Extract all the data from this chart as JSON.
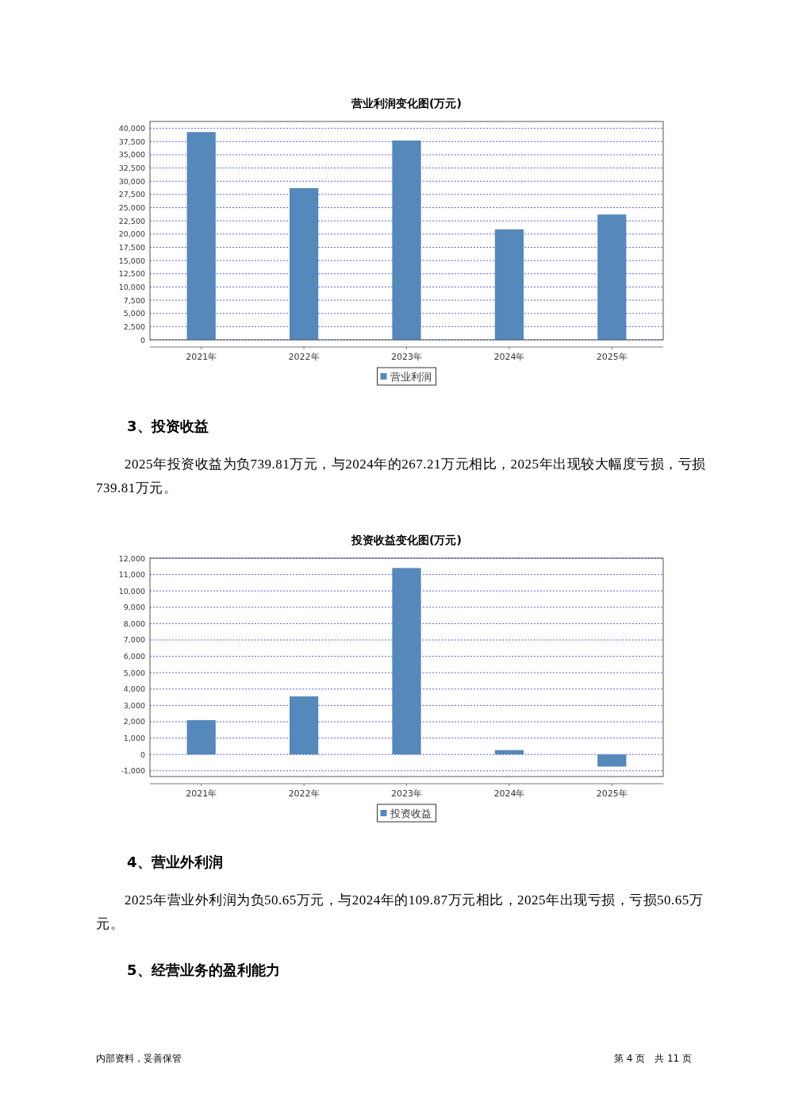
{
  "chart_data": [
    {
      "type": "bar",
      "title": "营业利润变化图(万元)",
      "categories": [
        "2021年",
        "2022年",
        "2023年",
        "2024年",
        "2025年"
      ],
      "series": [
        {
          "name": "营业利润",
          "color": "#5588bb",
          "values": [
            39300,
            28700,
            37700,
            20900,
            23700
          ]
        }
      ],
      "ylim": [
        0,
        41300
      ],
      "yticks": [
        {
          "value": 0,
          "label": "0"
        },
        {
          "value": 2500,
          "label": "2,500"
        },
        {
          "value": 5000,
          "label": "5,000"
        },
        {
          "value": 7500,
          "label": "7,500"
        },
        {
          "value": 10000,
          "label": "10,000"
        },
        {
          "value": 12500,
          "label": "12,500"
        },
        {
          "value": 15000,
          "label": "15,000"
        },
        {
          "value": 17500,
          "label": "17,500"
        },
        {
          "value": 20000,
          "label": "20,000"
        },
        {
          "value": 22500,
          "label": "22,500"
        },
        {
          "value": 25000,
          "label": "25,000"
        },
        {
          "value": 27500,
          "label": "27,500"
        },
        {
          "value": 30000,
          "label": "30,000"
        },
        {
          "value": 32500,
          "label": "32,500"
        },
        {
          "value": 35000,
          "label": "35,000"
        },
        {
          "value": 37500,
          "label": "37,500"
        },
        {
          "value": 40000,
          "label": "40,000"
        }
      ],
      "grid": "y",
      "legend": "bottom",
      "annotations": [
        "3、投资收益",
        "2025年投资收益为负739.81万元，与2024年的267.21万元相比，2025年出现较大幅度亏损，亏损739.81万元。"
      ]
    },
    {
      "type": "bar",
      "title": "投资收益变化图(万元)",
      "categories": [
        "2021年",
        "2022年",
        "2023年",
        "2024年",
        "2025年"
      ],
      "series": [
        {
          "name": "投资收益",
          "color": "#5588bb",
          "values": [
            2100,
            3550,
            11400,
            267.21,
            -739.81
          ]
        }
      ],
      "ylim": [
        -1350,
        12000
      ],
      "yticks": [
        {
          "value": -1000,
          "label": "-1,000"
        },
        {
          "value": 0,
          "label": "0"
        },
        {
          "value": 1000,
          "label": "1,000"
        },
        {
          "value": 2000,
          "label": "2,000"
        },
        {
          "value": 3000,
          "label": "3,000"
        },
        {
          "value": 4000,
          "label": "4,000"
        },
        {
          "value": 5000,
          "label": "5,000"
        },
        {
          "value": 6000,
          "label": "6,000"
        },
        {
          "value": 7000,
          "label": "7,000"
        },
        {
          "value": 8000,
          "label": "8,000"
        },
        {
          "value": 9000,
          "label": "9,000"
        },
        {
          "value": 10000,
          "label": "10,000"
        },
        {
          "value": 11000,
          "label": "11,000"
        },
        {
          "value": 12000,
          "label": "12,000"
        }
      ],
      "grid": "y",
      "legend": "bottom",
      "annotations": [
        "4、营业外利润",
        "2025年营业外利润为负50.65万元，与2024年的109.87万元相比，2025年出现亏损，亏损50.65万元。",
        "5、经营业务的盈利能力",
        "内部资料，妥善保管",
        "第 4 页　共 11 页"
      ]
    }
  ]
}
